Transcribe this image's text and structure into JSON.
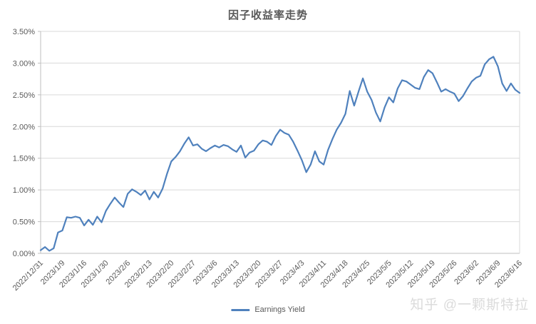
{
  "watermark": "知乎 @一颗斯特拉",
  "colors": {
    "line": "#4F81BD",
    "grid": "#D9D9D9",
    "axis": "#BFBFBF",
    "text": "#595959",
    "title": "#595959",
    "watermark": "#DBDBDB",
    "background": "#FFFFFF"
  },
  "chart_data": {
    "type": "line",
    "title": "因子收益率走势",
    "grid": true,
    "legend_position": "bottom",
    "ylim": [
      0,
      3.5
    ],
    "y_tick_step": 0.5,
    "y_tick_labels": [
      "0.00%",
      "0.50%",
      "1.00%",
      "1.50%",
      "2.00%",
      "2.50%",
      "3.00%",
      "3.50%"
    ],
    "x_tick_interval_points": 5,
    "x_tick_labels": [
      "2022/12/31",
      "2023/1/9",
      "2023/1/16",
      "2023/1/30",
      "2023/2/6",
      "2023/2/13",
      "2023/2/20",
      "2023/2/27",
      "2023/3/6",
      "2023/3/13",
      "2023/3/20",
      "2023/3/27",
      "2023/4/3",
      "2023/4/11",
      "2023/4/18",
      "2023/4/25",
      "2023/5/5",
      "2023/5/12",
      "2023/5/19",
      "2023/5/26",
      "2023/6/2",
      "2023/6/9",
      "2023/6/16"
    ],
    "unit": "percent",
    "series": [
      {
        "name": "Earnings Yield",
        "color": "#4F81BD",
        "values": [
          0.05,
          0.1,
          0.04,
          0.08,
          0.33,
          0.36,
          0.57,
          0.56,
          0.58,
          0.56,
          0.44,
          0.53,
          0.45,
          0.58,
          0.49,
          0.67,
          0.78,
          0.88,
          0.8,
          0.73,
          0.94,
          1.01,
          0.97,
          0.92,
          0.99,
          0.85,
          0.97,
          0.88,
          1.02,
          1.25,
          1.45,
          1.52,
          1.61,
          1.73,
          1.83,
          1.7,
          1.72,
          1.65,
          1.61,
          1.66,
          1.7,
          1.67,
          1.71,
          1.69,
          1.64,
          1.6,
          1.7,
          1.51,
          1.59,
          1.62,
          1.72,
          1.78,
          1.76,
          1.71,
          1.85,
          1.95,
          1.9,
          1.87,
          1.76,
          1.62,
          1.47,
          1.28,
          1.4,
          1.61,
          1.45,
          1.4,
          1.63,
          1.8,
          1.95,
          2.06,
          2.2,
          2.56,
          2.33,
          2.55,
          2.76,
          2.55,
          2.42,
          2.22,
          2.08,
          2.3,
          2.46,
          2.38,
          2.6,
          2.73,
          2.71,
          2.66,
          2.61,
          2.59,
          2.78,
          2.89,
          2.84,
          2.7,
          2.55,
          2.59,
          2.55,
          2.52,
          2.4,
          2.48,
          2.6,
          2.71,
          2.77,
          2.8,
          2.98,
          3.06,
          3.1,
          2.95,
          2.68,
          2.56,
          2.68,
          2.58,
          2.53
        ]
      }
    ]
  }
}
